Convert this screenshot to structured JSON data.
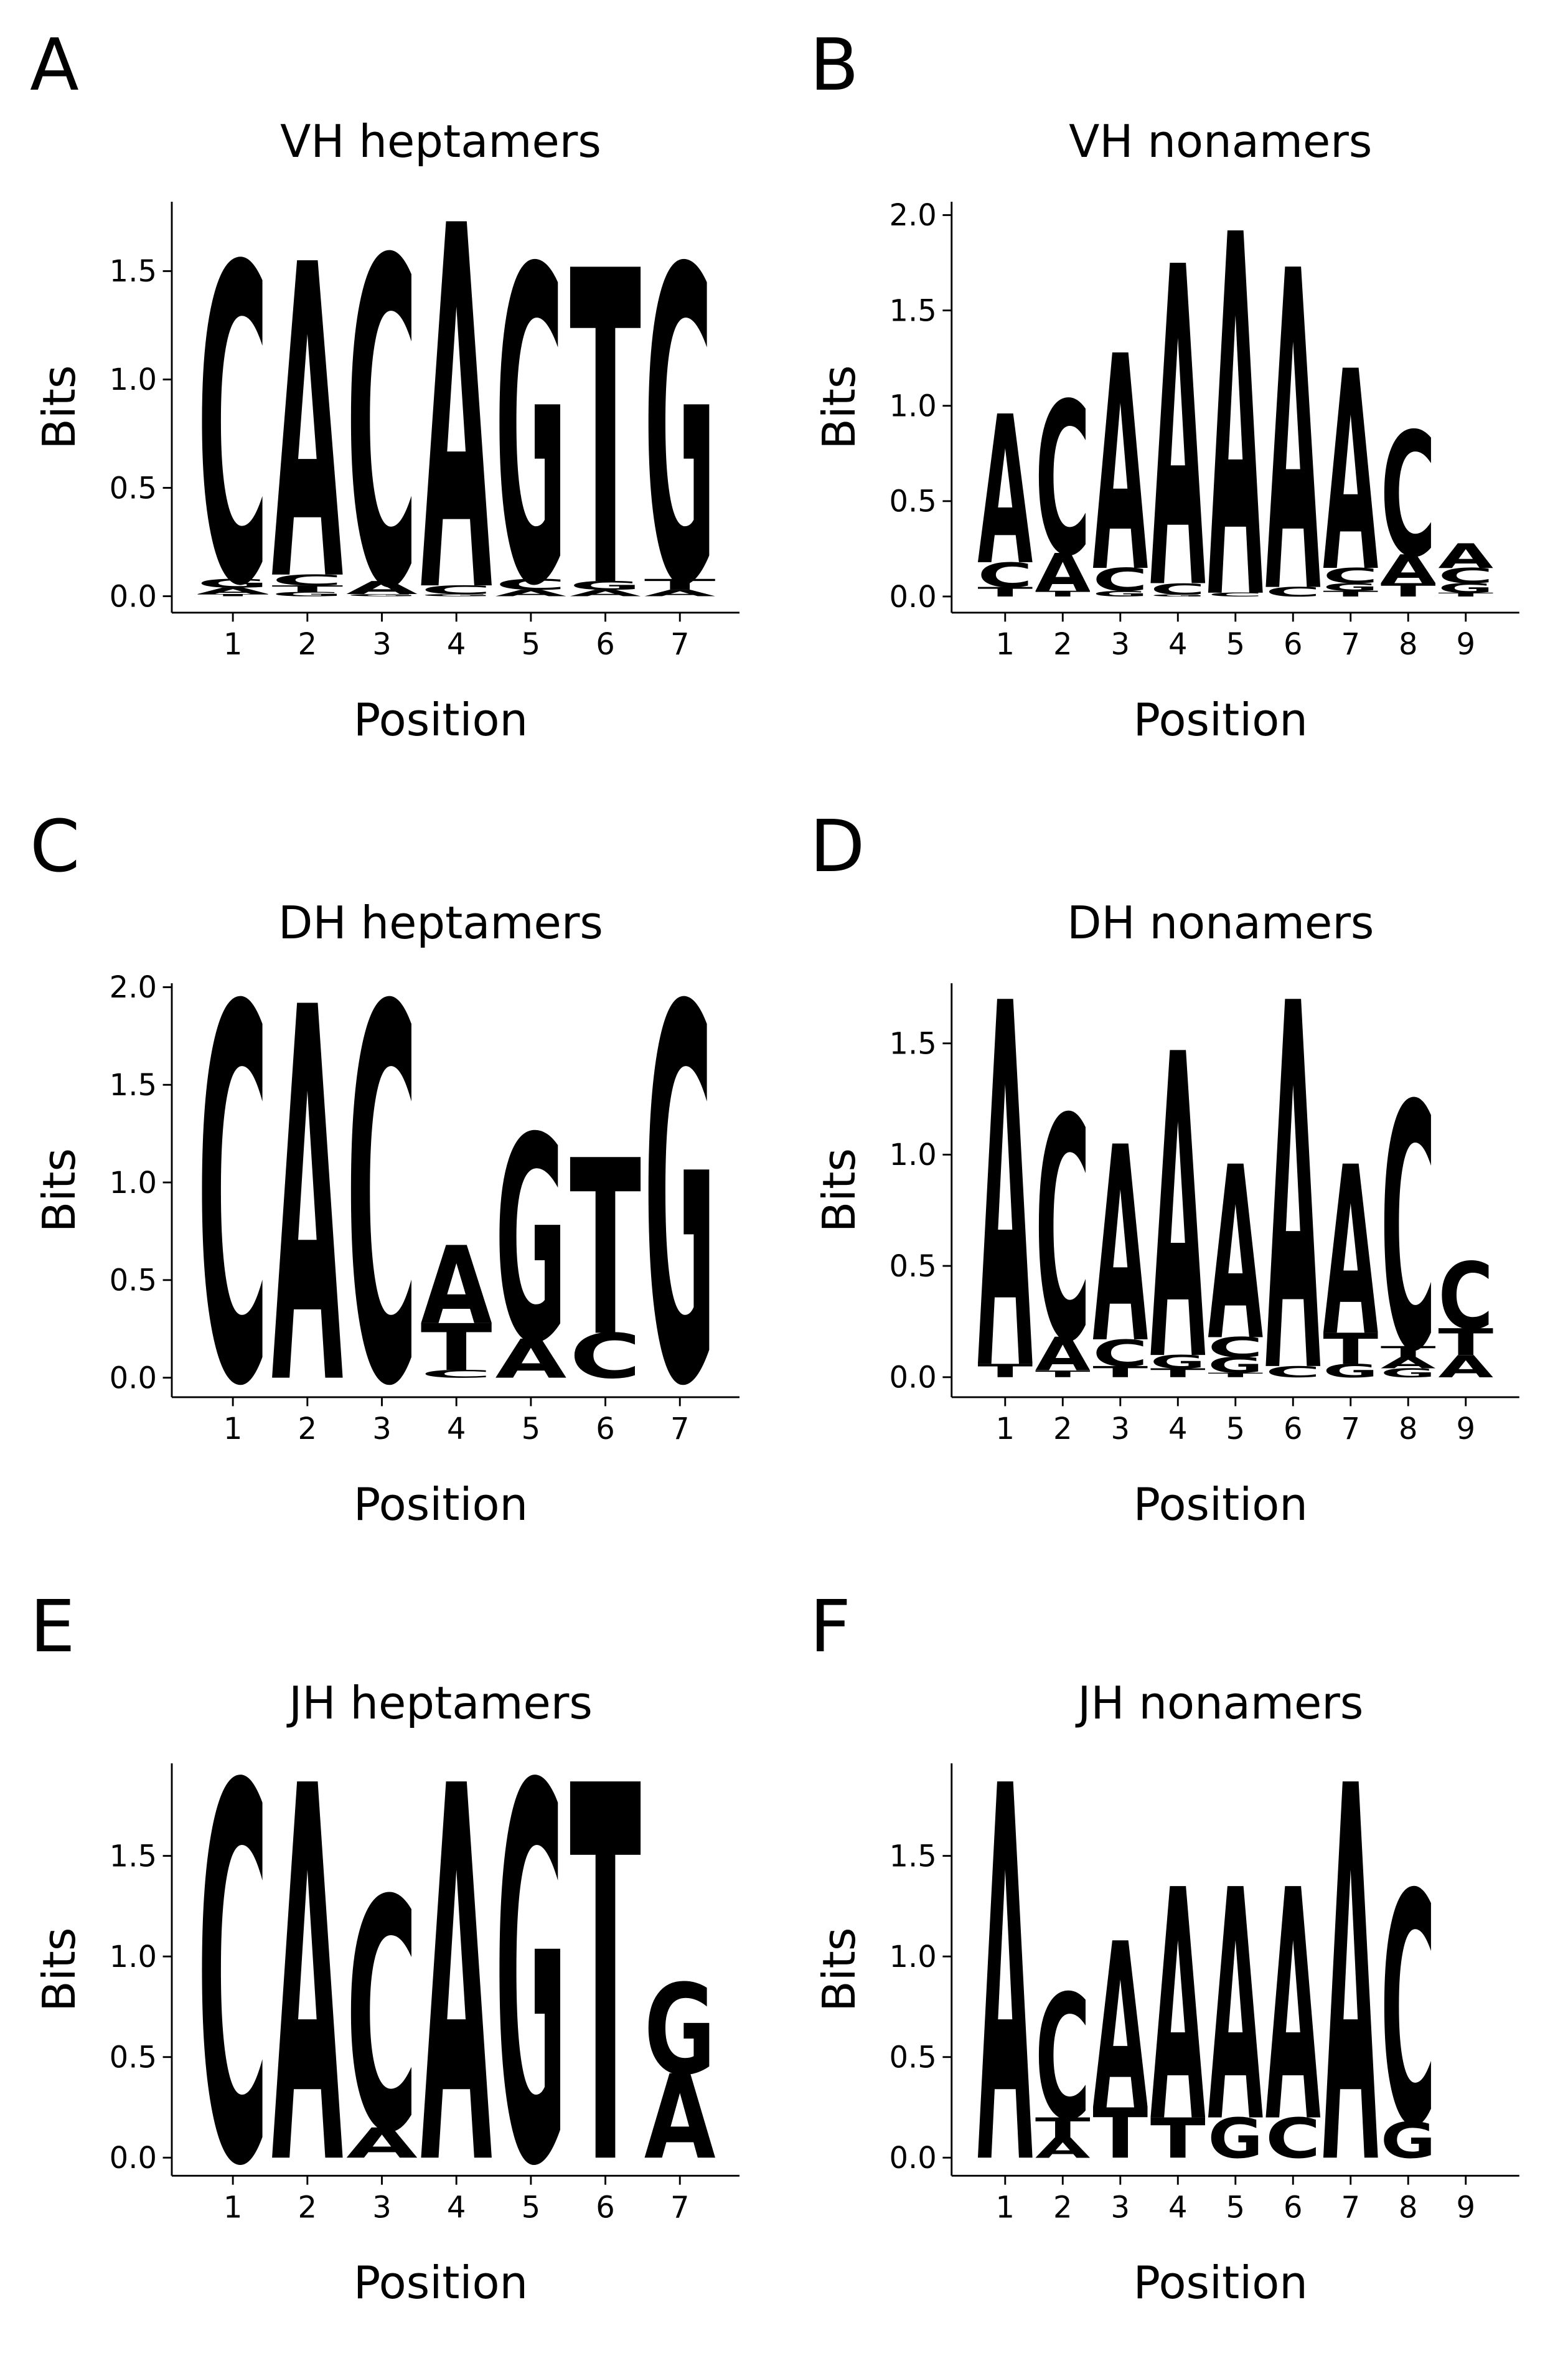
{
  "chart_data": [
    {
      "type": "logo",
      "panel": "A",
      "title": "VH heptamers",
      "xlabel": "Position",
      "ylabel": "Bits",
      "x": [
        1,
        2,
        3,
        4,
        5,
        6,
        7
      ],
      "xlim": [
        0.18,
        7.8
      ],
      "ylim": [
        -0.076,
        1.82
      ],
      "yticks": [
        {
          "value": 0,
          "label": "0.0"
        },
        {
          "value": 0.5,
          "label": "0.5"
        },
        {
          "value": 1,
          "label": "1.0"
        },
        {
          "value": 1.5,
          "label": "1.5"
        }
      ],
      "series": [
        {
          "name": "A",
          "color": "#109648",
          "values": [
            0.03,
            1.45,
            0.06,
            1.68,
            0.03,
            0.03,
            0.03
          ]
        },
        {
          "name": "C",
          "color": "#255C99",
          "values": [
            1.46,
            0.05,
            1.5,
            0.04,
            0.05,
            0,
            0
          ]
        },
        {
          "name": "G",
          "color": "#F7B32B",
          "values": [
            0.04,
            0.02,
            0.01,
            0.01,
            1.45,
            0.04,
            1.45
          ]
        },
        {
          "name": "T",
          "color": "#D62839",
          "values": [
            0.01,
            0.03,
            0,
            0,
            0,
            1.45,
            0.05
          ]
        }
      ]
    },
    {
      "type": "logo",
      "panel": "B",
      "title": "VH nonamers",
      "xlabel": "Position",
      "ylabel": "Bits",
      "x": [
        1,
        2,
        3,
        4,
        5,
        6,
        7,
        8,
        9
      ],
      "xlim": [
        0.07,
        9.93
      ],
      "ylim": [
        -0.085,
        2.07
      ],
      "yticks": [
        {
          "value": 0,
          "label": "0.0"
        },
        {
          "value": 0.5,
          "label": "0.5"
        },
        {
          "value": 1,
          "label": "1.0"
        },
        {
          "value": 1.5,
          "label": "1.5"
        },
        {
          "value": 2,
          "label": "2.0"
        }
      ],
      "series": [
        {
          "name": "A",
          "color": "#109648",
          "values": [
            0.78,
            0.2,
            1.13,
            1.68,
            1.9,
            1.68,
            1.05,
            0.15,
            0.13
          ]
        },
        {
          "name": "C",
          "color": "#255C99",
          "values": [
            0.13,
            0.8,
            0.12,
            0.06,
            0.02,
            0.05,
            0.08,
            0.65,
            0.08
          ]
        },
        {
          "name": "G",
          "color": "#F7B32B",
          "values": [
            0,
            0,
            0.03,
            0.01,
            0,
            0,
            0.04,
            0,
            0.05
          ]
        },
        {
          "name": "T",
          "color": "#D62839",
          "values": [
            0.05,
            0.03,
            0,
            0,
            0,
            0,
            0.03,
            0.07,
            0.02
          ]
        }
      ]
    },
    {
      "type": "logo",
      "panel": "C",
      "title": "DH heptamers",
      "xlabel": "Position",
      "ylabel": "Bits",
      "x": [
        1,
        2,
        3,
        4,
        5,
        6,
        7
      ],
      "xlim": [
        0.18,
        7.8
      ],
      "ylim": [
        -0.1,
        2.02
      ],
      "yticks": [
        {
          "value": 0,
          "label": "0.0"
        },
        {
          "value": 0.5,
          "label": "0.5"
        },
        {
          "value": 1,
          "label": "1.0"
        },
        {
          "value": 1.5,
          "label": "1.5"
        },
        {
          "value": 2,
          "label": "2.0"
        }
      ],
      "series": [
        {
          "name": "A",
          "color": "#109648",
          "values": [
            0,
            1.92,
            0,
            0.4,
            0.2,
            0,
            0
          ]
        },
        {
          "name": "C",
          "color": "#255C99",
          "values": [
            1.92,
            0,
            1.92,
            0.04,
            0,
            0.23,
            0
          ]
        },
        {
          "name": "G",
          "color": "#F7B32B",
          "values": [
            0,
            0,
            0,
            0,
            1.05,
            0,
            1.92
          ]
        },
        {
          "name": "T",
          "color": "#D62839",
          "values": [
            0,
            0,
            0,
            0.24,
            0,
            0.9,
            0
          ]
        }
      ]
    },
    {
      "type": "logo",
      "panel": "D",
      "title": "DH nonamers",
      "xlabel": "Position",
      "ylabel": "Bits",
      "x": [
        1,
        2,
        3,
        4,
        5,
        6,
        7,
        8,
        9
      ],
      "xlim": [
        0.07,
        9.93
      ],
      "ylim": [
        -0.09,
        1.77
      ],
      "yticks": [
        {
          "value": 0,
          "label": "0.0"
        },
        {
          "value": 0.5,
          "label": "0.5"
        },
        {
          "value": 1,
          "label": "1.0"
        },
        {
          "value": 1.5,
          "label": "1.5"
        }
      ],
      "series": [
        {
          "name": "A",
          "color": "#109648",
          "values": [
            1.64,
            0.15,
            0.88,
            1.37,
            0.78,
            1.65,
            0.76,
            0.05,
            0.1
          ]
        },
        {
          "name": "C",
          "color": "#255C99",
          "values": [
            0,
            1.0,
            0.12,
            0,
            0.09,
            0.05,
            0,
            1.1,
            0.3
          ]
        },
        {
          "name": "G",
          "color": "#F7B32B",
          "values": [
            0,
            0,
            0,
            0.06,
            0.07,
            0,
            0.06,
            0.04,
            0
          ]
        },
        {
          "name": "T",
          "color": "#D62839",
          "values": [
            0.06,
            0.03,
            0.05,
            0.04,
            0.02,
            0,
            0.14,
            0.05,
            0.12
          ]
        }
      ]
    },
    {
      "type": "logo",
      "panel": "E",
      "title": "JH heptamers",
      "xlabel": "Position",
      "ylabel": "Bits",
      "x": [
        1,
        2,
        3,
        4,
        5,
        6,
        7
      ],
      "xlim": [
        0.18,
        7.8
      ],
      "ylim": [
        -0.09,
        1.96
      ],
      "yticks": [
        {
          "value": 0,
          "label": "0.0"
        },
        {
          "value": 0.5,
          "label": "0.5"
        },
        {
          "value": 1,
          "label": "1.0"
        },
        {
          "value": 1.5,
          "label": "1.5"
        }
      ],
      "series": [
        {
          "name": "A",
          "color": "#109648",
          "values": [
            0,
            1.87,
            0.15,
            1.87,
            0,
            0,
            0.42
          ]
        },
        {
          "name": "C",
          "color": "#255C99",
          "values": [
            1.87,
            0,
            1.15,
            0,
            0,
            0,
            0
          ]
        },
        {
          "name": "G",
          "color": "#F7B32B",
          "values": [
            0,
            0,
            0,
            0,
            1.87,
            0,
            0.45
          ]
        },
        {
          "name": "T",
          "color": "#D62839",
          "values": [
            0,
            0,
            0,
            0,
            0,
            1.87,
            0
          ]
        }
      ]
    },
    {
      "type": "logo",
      "panel": "F",
      "title": "JH nonamers",
      "xlabel": "Position",
      "ylabel": "Bits",
      "x": [
        1,
        2,
        3,
        4,
        5,
        6,
        7,
        8,
        9
      ],
      "xlim": [
        0.07,
        9.93
      ],
      "ylim": [
        -0.09,
        1.96
      ],
      "yticks": [
        {
          "value": 0,
          "label": "0.0"
        },
        {
          "value": 0.5,
          "label": "0.5"
        },
        {
          "value": 1,
          "label": "1.0"
        },
        {
          "value": 1.5,
          "label": "1.5"
        }
      ],
      "series": [
        {
          "name": "A",
          "color": "#109648",
          "values": [
            1.87,
            0.1,
            0.83,
            1.15,
            1.15,
            1.15,
            1.87,
            0,
            0
          ]
        },
        {
          "name": "C",
          "color": "#255C99",
          "values": [
            0,
            0.62,
            0,
            0,
            0,
            0.2,
            0,
            1.15,
            0
          ]
        },
        {
          "name": "G",
          "color": "#F7B32B",
          "values": [
            0,
            0,
            0,
            0,
            0.2,
            0,
            0,
            0.18,
            0
          ]
        },
        {
          "name": "T",
          "color": "#D62839",
          "values": [
            0,
            0.1,
            0.25,
            0.2,
            0,
            0,
            0,
            0,
            0
          ]
        }
      ]
    }
  ]
}
